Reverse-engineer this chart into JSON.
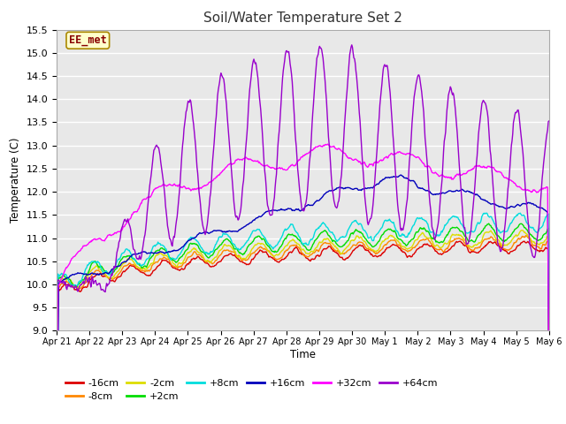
{
  "title": "Soil/Water Temperature Set 2",
  "xlabel": "Time",
  "ylabel": "Temperature (C)",
  "ylim": [
    9.0,
    15.5
  ],
  "yticks": [
    9.0,
    9.5,
    10.0,
    10.5,
    11.0,
    11.5,
    12.0,
    12.5,
    13.0,
    13.5,
    14.0,
    14.5,
    15.0,
    15.5
  ],
  "date_labels": [
    "Apr 21",
    "Apr 22",
    "Apr 23",
    "Apr 24",
    "Apr 25",
    "Apr 26",
    "Apr 27",
    "Apr 28",
    "Apr 29",
    "Apr 30",
    "May 1",
    "May 2",
    "May 3",
    "May 4",
    "May 5",
    "May 6"
  ],
  "colors": {
    "-16cm": "#dd0000",
    "-8cm": "#ff8800",
    "-2cm": "#dddd00",
    "+2cm": "#00dd00",
    "+8cm": "#00dddd",
    "+16cm": "#0000bb",
    "+32cm": "#ff00ff",
    "+64cm": "#9900cc"
  },
  "annotation_text": "EE_met",
  "annotation_box_color": "#ffffcc",
  "annotation_border_color": "#aa8800",
  "annotation_text_color": "#880000",
  "bg_color": "#ffffff",
  "plot_bg_color": "#e8e8e8",
  "grid_color": "#ffffff",
  "n_points": 720
}
